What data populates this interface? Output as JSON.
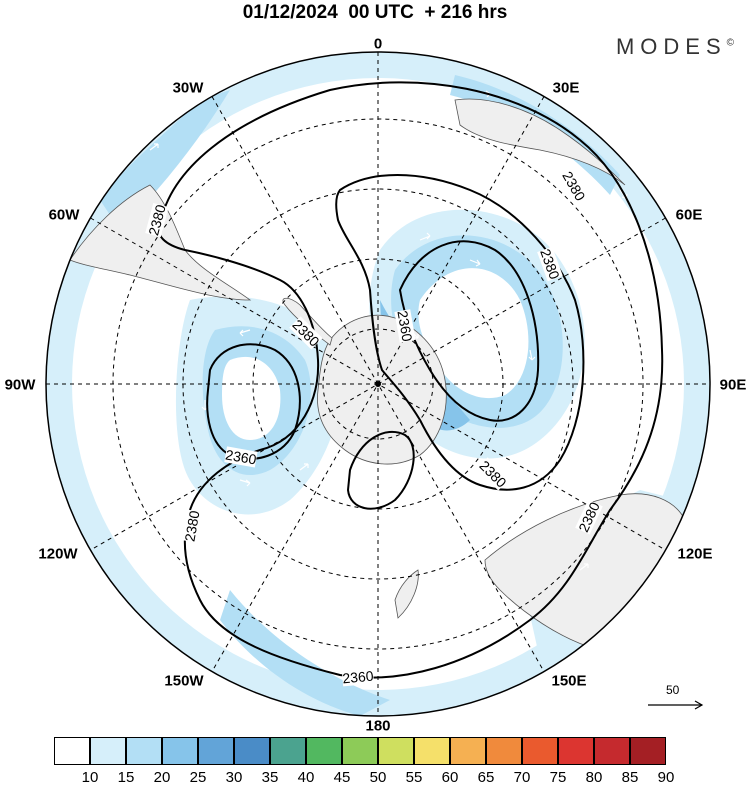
{
  "title": "01/12/2024  00 UTC  + 216 hrs",
  "brand": "MODES",
  "brand_mark": "©",
  "longitude_labels": {
    "lon_0": "0",
    "lon_30e": "30E",
    "lon_60e": "60E",
    "lon_90e": "90E",
    "lon_120e": "120E",
    "lon_150e": "150E",
    "lon_180": "180",
    "lon_150w": "150W",
    "lon_120w": "120W",
    "lon_90w": "90W",
    "lon_60w": "60W",
    "lon_30w": "30W"
  },
  "contour_labels": {
    "c1": "2380",
    "c2": "2380",
    "c3": "2380",
    "c4": "2380",
    "c5": "2380",
    "c6": "2380",
    "c7": "2380",
    "c8": "2360",
    "c9": "2360"
  },
  "legend": {
    "labels": [
      "10",
      "15",
      "20",
      "25",
      "30",
      "35",
      "40",
      "45",
      "50",
      "55",
      "60",
      "65",
      "70",
      "75",
      "80",
      "85",
      "90"
    ],
    "colors": [
      "#ffffff",
      "#d6effa",
      "#b3dff5",
      "#86c4ea",
      "#62a4d8",
      "#4a8cc7",
      "#4ba38f",
      "#52b860",
      "#8dcb58",
      "#cfdf5f",
      "#f5e06a",
      "#f5b052",
      "#f08a3c",
      "#ea5a2e",
      "#dc3530",
      "#c52a2e",
      "#a41f24"
    ]
  },
  "reference_vector": {
    "label": "50"
  },
  "colors": {
    "land": "#efefef",
    "shade_light": "#d6effa",
    "shade_mid": "#b3dff5",
    "shade_dark": "#86c4ea",
    "contour": "#000000"
  }
}
